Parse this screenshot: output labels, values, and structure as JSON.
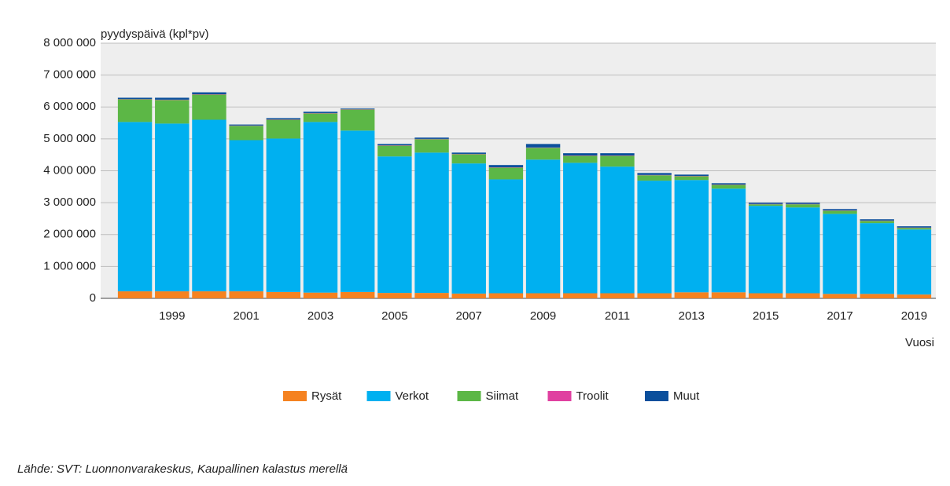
{
  "chart_data": {
    "type": "stacked_bar",
    "y_label": "pyydyspäivä (kpl*pv)",
    "x_label": "Vuosi",
    "source": "Lähde: SVT: Luonnonvarakeskus, Kaupallinen kalastus merellä",
    "categories": [
      null,
      "1999",
      null,
      "2001",
      null,
      "2003",
      null,
      "2005",
      null,
      "2007",
      null,
      "2009",
      null,
      "2011",
      null,
      "2013",
      null,
      "2015",
      null,
      "2017",
      null,
      "2019"
    ],
    "series": [
      {
        "name": "Rysät",
        "color": "#f58220",
        "values": [
          220000,
          220000,
          220000,
          220000,
          200000,
          180000,
          200000,
          170000,
          170000,
          150000,
          160000,
          160000,
          160000,
          160000,
          160000,
          190000,
          190000,
          160000,
          160000,
          140000,
          140000,
          120000
        ]
      },
      {
        "name": "Verkot",
        "color": "#00b0f0",
        "values": [
          5310000,
          5260000,
          5380000,
          4740000,
          4810000,
          5350000,
          5060000,
          4280000,
          4400000,
          4080000,
          3570000,
          4190000,
          4090000,
          3970000,
          3530000,
          3520000,
          3250000,
          2740000,
          2690000,
          2510000,
          2220000,
          2040000
        ]
      },
      {
        "name": "Siimat",
        "color": "#5cb746",
        "values": [
          710000,
          740000,
          790000,
          450000,
          590000,
          270000,
          660000,
          340000,
          420000,
          290000,
          370000,
          370000,
          220000,
          340000,
          170000,
          120000,
          120000,
          50000,
          100000,
          100000,
          70000,
          50000
        ]
      },
      {
        "name": "Troolit",
        "color": "#e040a0",
        "values": [
          10000,
          10000,
          10000,
          10000,
          10000,
          10000,
          10000,
          10000,
          10000,
          10000,
          10000,
          10000,
          10000,
          10000,
          10000,
          10000,
          10000,
          10000,
          10000,
          10000,
          10000,
          10000
        ]
      },
      {
        "name": "Muut",
        "color": "#0b4f9c",
        "values": [
          40000,
          60000,
          60000,
          30000,
          40000,
          40000,
          20000,
          40000,
          40000,
          40000,
          70000,
          110000,
          70000,
          70000,
          60000,
          40000,
          40000,
          40000,
          40000,
          40000,
          40000,
          40000
        ]
      }
    ],
    "ylim": [
      0,
      8000000
    ],
    "yticks": [
      0,
      {
        "value": 1000000,
        "label": "1 000 000"
      },
      {
        "value": 2000000,
        "label": "2 000 000"
      },
      {
        "value": 3000000,
        "label": "3 000 000"
      },
      {
        "value": 4000000,
        "label": "4 000 000"
      },
      {
        "value": 5000000,
        "label": "5 000 000"
      },
      {
        "value": 6000000,
        "label": "6 000 000"
      },
      {
        "value": 7000000,
        "label": "7 000 000"
      },
      {
        "value": 8000000,
        "label": "8 000 000"
      }
    ],
    "grid": true
  }
}
